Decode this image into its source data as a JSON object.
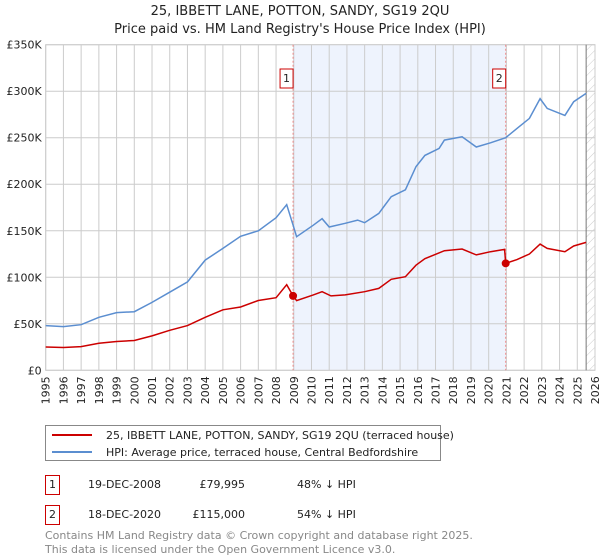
{
  "chart_data": {
    "type": "line",
    "title": "25, IBBETT LANE, POTTON, SANDY, SG19 2QU",
    "subtitle": "Price paid vs. HM Land Registry's House Price Index (HPI)",
    "xlim": [
      1995,
      2026
    ],
    "ylim": [
      0,
      350000
    ],
    "x_ticks": [
      "1995",
      "1996",
      "1997",
      "1998",
      "1999",
      "2000",
      "2001",
      "2002",
      "2003",
      "2004",
      "2005",
      "2006",
      "2007",
      "2008",
      "2009",
      "2010",
      "2011",
      "2012",
      "2013",
      "2014",
      "2015",
      "2016",
      "2017",
      "2018",
      "2019",
      "2020",
      "2021",
      "2022",
      "2023",
      "2024",
      "2025",
      "2026"
    ],
    "y_ticks": [
      {
        "v": 0,
        "label": "£0"
      },
      {
        "v": 50000,
        "label": "£50K"
      },
      {
        "v": 100000,
        "label": "£100K"
      },
      {
        "v": 150000,
        "label": "£150K"
      },
      {
        "v": 200000,
        "label": "£200K"
      },
      {
        "v": 250000,
        "label": "£250K"
      },
      {
        "v": 300000,
        "label": "£300K"
      },
      {
        "v": 350000,
        "label": "£350K"
      }
    ],
    "grid": true,
    "shaded_range": [
      2008.96,
      2020.96
    ],
    "forecast_hatch_from": 2025.5,
    "series": [
      {
        "name": "25, IBBETT LANE, POTTON, SANDY, SG19 2QU (terraced house)",
        "color": "#cc0000",
        "x": [
          1995,
          1996,
          1997,
          1998,
          1999,
          2000,
          2001,
          2002,
          2003,
          2004,
          2005,
          2006,
          2007,
          2008,
          2008.6,
          2008.96,
          2009.16,
          2010.1,
          2010.6,
          2011.1,
          2011.9,
          2013,
          2013.8,
          2014.5,
          2015.3,
          2015.9,
          2016.4,
          2017.5,
          2018.5,
          2019.3,
          2020.1,
          2020.9,
          2020.96,
          2021.6,
          2022.3,
          2022.9,
          2023.3,
          2024.3,
          2024.8,
          2025.5
        ],
        "y": [
          25000,
          24500,
          25500,
          29000,
          31000,
          32000,
          37000,
          43000,
          48000,
          57000,
          65000,
          68000,
          75000,
          78000,
          92000,
          79995,
          74900,
          81000,
          84500,
          80000,
          81000,
          84500,
          88000,
          97800,
          100600,
          113000,
          120000,
          128600,
          130400,
          124000,
          127500,
          130000,
          115000,
          119000,
          125000,
          135700,
          131000,
          127500,
          133600,
          137500
        ]
      },
      {
        "name": "HPI: Average price, terraced house, Central Bedfordshire",
        "color": "#5b8ed0",
        "x": [
          1995,
          1996,
          1997,
          1998,
          1999,
          2000,
          2001,
          2002,
          2003,
          2004,
          2005,
          2006,
          2007,
          2008,
          2008.6,
          2008.96,
          2009.16,
          2010.1,
          2010.6,
          2011.0,
          2011.9,
          2012.6,
          2013.0,
          2013.8,
          2014.5,
          2015.3,
          2015.9,
          2016.4,
          2017.2,
          2017.5,
          2018.5,
          2019.3,
          2020.1,
          2020.96,
          2021.6,
          2022.3,
          2022.9,
          2023.3,
          2024.3,
          2024.8,
          2025.5
        ],
        "y": [
          48000,
          47000,
          49000,
          57000,
          62000,
          63000,
          73000,
          84000,
          95000,
          118500,
          131000,
          144000,
          150000,
          164000,
          178000,
          156000,
          143600,
          156000,
          163000,
          154000,
          158000,
          161500,
          158700,
          168700,
          186600,
          194000,
          219000,
          231000,
          238500,
          247500,
          251000,
          240000,
          244600,
          250000,
          260000,
          270800,
          292000,
          281500,
          274000,
          288700,
          297600
        ]
      }
    ],
    "sales": [
      {
        "num": "1",
        "x": 2008.96,
        "y": 79995
      },
      {
        "num": "2",
        "x": 2020.96,
        "y": 115000
      }
    ]
  },
  "legend": {
    "property": "25, IBBETT LANE, POTTON, SANDY, SG19 2QU (terraced house)",
    "hpi": "HPI: Average price, terraced house, Central Bedfordshire"
  },
  "transactions": [
    {
      "num": "1",
      "date": "19-DEC-2008",
      "price": "£79,995",
      "pct": "48% ↓ HPI"
    },
    {
      "num": "2",
      "date": "18-DEC-2020",
      "price": "£115,000",
      "pct": "54% ↓ HPI"
    }
  ],
  "footer": {
    "line1": "Contains HM Land Registry data © Crown copyright and database right 2025.",
    "line2": "This data is licensed under the Open Government Licence v3.0."
  }
}
